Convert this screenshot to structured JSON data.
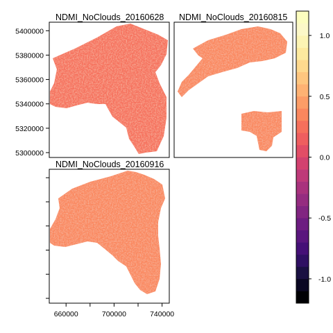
{
  "chart_data": {
    "type": "heatmap",
    "panels": [
      {
        "title": "NDMI_NoClouds_20160628",
        "show_y_tick_labels": true,
        "show_x_tick_labels": false,
        "mean_value": 0.2,
        "coverage": "full"
      },
      {
        "title": "NDMI_NoClouds_20160815",
        "show_y_tick_labels": false,
        "show_x_tick_labels": false,
        "mean_value": 0.3,
        "coverage": "partial"
      },
      {
        "title": "NDMI_NoClouds_20160916",
        "show_y_tick_labels": false,
        "show_x_tick_labels": true,
        "mean_value": 0.35,
        "coverage": "partial"
      }
    ],
    "x_axis": {
      "ticks": [
        660000,
        700000,
        740000
      ],
      "tick_labels": [
        "660000",
        "700000",
        "740000"
      ],
      "range": [
        646000,
        746000
      ]
    },
    "y_axis": {
      "ticks": [
        5300000,
        5320000,
        5340000,
        5360000,
        5380000,
        5400000
      ],
      "tick_labels": [
        "5300000",
        "5320000",
        "5340000",
        "5360000",
        "5380000",
        "5400000"
      ],
      "range": [
        5296000,
        5407000
      ]
    },
    "colorbar": {
      "range": [
        -1.2,
        1.2
      ],
      "ticks": [
        -1.0,
        -0.5,
        0.0,
        0.5,
        1.0
      ],
      "tick_labels": [
        "-1.0",
        "-0.5",
        "0.0",
        "0.5",
        "1.0"
      ],
      "bins": 24,
      "colors": [
        "#000004",
        "#0a0722",
        "#1a1042",
        "#2f1063",
        "#451077",
        "#5a167e",
        "#6d1d81",
        "#812581",
        "#952c80",
        "#a9327d",
        "#be3a79",
        "#d2416f",
        "#e24d66",
        "#ef5e5f",
        "#f6705c",
        "#fa875e",
        "#fc9d67",
        "#feb273",
        "#fec67f",
        "#fed98e",
        "#fdea9f",
        "#fcf4b4",
        "#fcf8c8",
        "#fcfdbf"
      ]
    },
    "grid": false,
    "legend": "right"
  }
}
